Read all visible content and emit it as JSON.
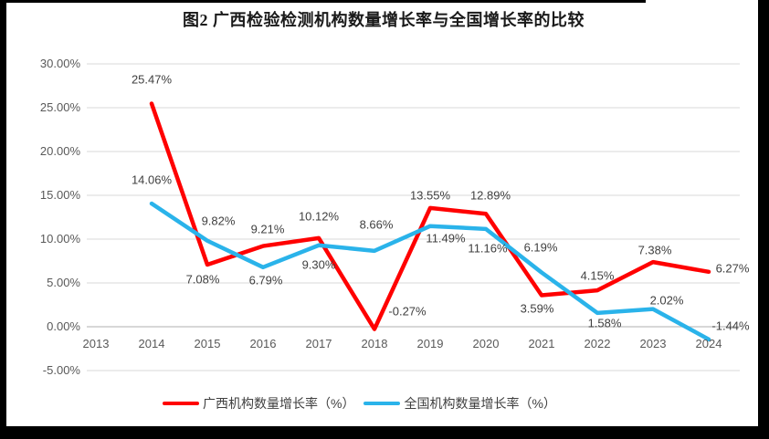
{
  "title": "图2 广西检验检测机构数量增长率与全国增长率的比较",
  "colors": {
    "guangxi_line": "#ff0000",
    "national_line": "#2ab3ea",
    "gridline": "#d9d9d9",
    "axis_line": "#bfbfbf",
    "tick_text": "#595959",
    "data_label_text": "#404040",
    "frame": "#000000"
  },
  "chart_data": {
    "type": "line",
    "categories": [
      "2013",
      "2014",
      "2015",
      "2016",
      "2017",
      "2018",
      "2019",
      "2020",
      "2021",
      "2022",
      "2023",
      "2024"
    ],
    "series": [
      {
        "name": "广西机构数量增长率（%）",
        "color_key": "guangxi_line",
        "values": [
          null,
          25.47,
          7.08,
          9.21,
          10.12,
          -0.27,
          13.55,
          12.89,
          3.59,
          4.15,
          7.38,
          6.27
        ],
        "labels": [
          null,
          "25.47%",
          "7.08%",
          "9.21%",
          "10.12%",
          "-0.27%",
          "13.55%",
          "12.89%",
          "3.59%",
          "4.15%",
          "7.38%",
          "6.27%"
        ]
      },
      {
        "name": "全国机构数量增长率（%）",
        "color_key": "national_line",
        "values": [
          null,
          14.06,
          9.82,
          6.79,
          9.3,
          8.66,
          11.49,
          11.16,
          6.19,
          1.58,
          2.02,
          -1.44
        ],
        "labels": [
          null,
          "14.06%",
          "9.82%",
          "6.79%",
          "9.30%",
          "8.66%",
          "11.49%",
          "11.16%",
          "6.19%",
          "1.58%",
          "2.02%",
          "-1.44%"
        ]
      }
    ],
    "ylim": [
      -5,
      30
    ],
    "y_ticks": [
      "30.00%",
      "25.00%",
      "20.00%",
      "15.00%",
      "10.00%",
      "5.00%",
      "0.00%",
      "-5.00%"
    ],
    "grid": true,
    "legend_position": "bottom",
    "data_labels_shown": true
  },
  "legend": {
    "items": [
      {
        "label": "广西机构数量增长率（%）"
      },
      {
        "label": "全国机构数量增长率（%）"
      }
    ]
  }
}
